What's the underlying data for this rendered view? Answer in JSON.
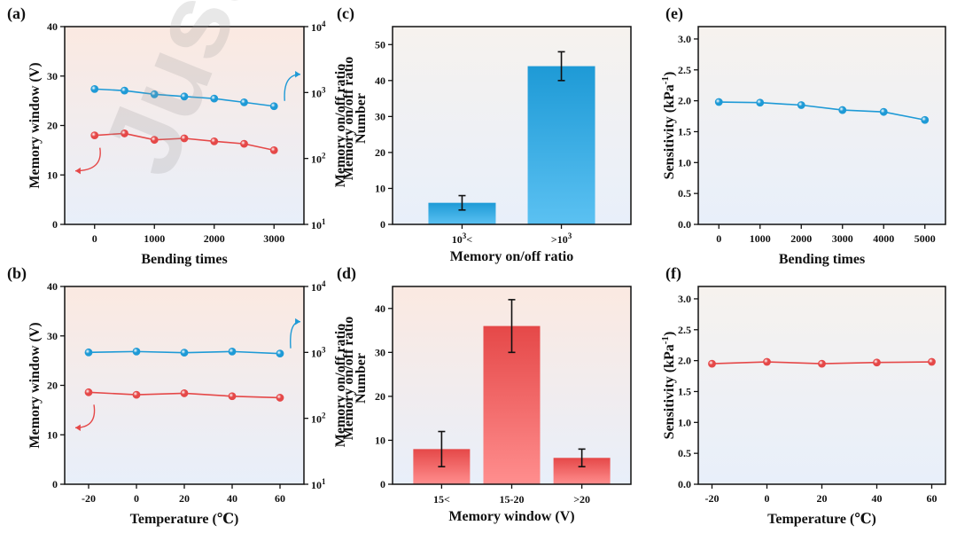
{
  "watermark": "Just",
  "colors": {
    "blue": "#1e9ad6",
    "blue_light": "#5bc1f2",
    "red": "#e54848",
    "red_light": "#ff8e8e",
    "bg_top_red": "#fbe9e1",
    "bg_bottom_blue": "#e8effa",
    "bg_top_blue": "#f6f2ee"
  },
  "chart_data": [
    {
      "id": "a",
      "panel_label": "(a)",
      "type": "line",
      "xlabel": "Bending times",
      "ylabel": "Memory window (V)",
      "y2label": "Memory on/off ratio",
      "x": [
        0,
        500,
        1000,
        1500,
        2000,
        2500,
        3000
      ],
      "xlim": [
        -500,
        3500
      ],
      "xticks": [
        0,
        1000,
        2000,
        3000
      ],
      "ylim": [
        0,
        40
      ],
      "yticks": [
        0,
        10,
        20,
        30,
        40
      ],
      "y2ticks": [
        {
          "base": "10",
          "exp": "1",
          "value": 10
        },
        {
          "base": "10",
          "exp": "2",
          "value": 100
        },
        {
          "base": "10",
          "exp": "3",
          "value": 1000
        },
        {
          "base": "10",
          "exp": "4",
          "value": 10000
        }
      ],
      "series": [
        {
          "name": "Memory window",
          "axis": "left",
          "color": "#e54848",
          "values": [
            18.0,
            18.4,
            17.1,
            17.4,
            16.8,
            16.3,
            15.0
          ]
        },
        {
          "name": "Memory on/off ratio",
          "axis": "right",
          "color": "#1e9ad6",
          "values": [
            1130,
            1070,
            940,
            870,
            810,
            710,
            620
          ]
        }
      ],
      "arrows": [
        {
          "series": "Memory window",
          "direction": "left"
        },
        {
          "series": "Memory on/off ratio",
          "direction": "right"
        }
      ]
    },
    {
      "id": "b",
      "panel_label": "(b)",
      "type": "line",
      "xlabel": "Temperature (℃)",
      "ylabel": "Memory window (V)",
      "y2label": "Memory on/off ratio",
      "x": [
        -20,
        0,
        20,
        40,
        60
      ],
      "xlim": [
        -30,
        70
      ],
      "xticks": [
        -20,
        0,
        20,
        40,
        60
      ],
      "ylim": [
        0,
        40
      ],
      "yticks": [
        0,
        10,
        20,
        30,
        40
      ],
      "y2ticks": [
        {
          "base": "10",
          "exp": "1",
          "value": 10
        },
        {
          "base": "10",
          "exp": "2",
          "value": 100
        },
        {
          "base": "10",
          "exp": "3",
          "value": 1000
        },
        {
          "base": "10",
          "exp": "4",
          "value": 10000
        }
      ],
      "series": [
        {
          "name": "Memory window",
          "axis": "left",
          "color": "#e54848",
          "values": [
            18.6,
            18.1,
            18.4,
            17.8,
            17.5
          ]
        },
        {
          "name": "Memory on/off ratio",
          "axis": "right",
          "color": "#1e9ad6",
          "values": [
            1000,
            1030,
            990,
            1030,
            960
          ]
        }
      ],
      "arrows": [
        {
          "series": "Memory window",
          "direction": "left"
        },
        {
          "series": "Memory on/off ratio",
          "direction": "right"
        }
      ]
    },
    {
      "id": "c",
      "panel_label": "(c)",
      "type": "bar",
      "xlabel": "Memory on/off ratio",
      "ylabel": "Number",
      "categories": [
        {
          "pre": "10",
          "sup": "3",
          "post": "<"
        },
        {
          "pre": ">10",
          "sup": "3",
          "post": ""
        }
      ],
      "values": [
        6,
        44
      ],
      "errors": [
        2,
        4
      ],
      "ylim": [
        0,
        55
      ],
      "yticks": [
        0,
        10,
        20,
        30,
        40,
        50
      ],
      "color": "#1e9ad6"
    },
    {
      "id": "d",
      "panel_label": "(d)",
      "type": "bar",
      "xlabel": "Memory window (V)",
      "ylabel": "Number",
      "categories": [
        {
          "pre": "15<",
          "sup": "",
          "post": ""
        },
        {
          "pre": "15-20",
          "sup": "",
          "post": ""
        },
        {
          "pre": ">20",
          "sup": "",
          "post": ""
        }
      ],
      "values": [
        8,
        36,
        6
      ],
      "errors": [
        4,
        6,
        2
      ],
      "ylim": [
        0,
        45
      ],
      "yticks": [
        0,
        10,
        20,
        30,
        40
      ],
      "color": "#e54848"
    },
    {
      "id": "e",
      "panel_label": "(e)",
      "type": "line",
      "xlabel": "Bending times",
      "ylabel_pre": "Sensitivity (kPa",
      "ylabel_sup": "-1",
      "ylabel_post": ")",
      "x": [
        0,
        1000,
        2000,
        3000,
        4000,
        5000
      ],
      "xlim": [
        -500,
        5500
      ],
      "xticks": [
        0,
        1000,
        2000,
        3000,
        4000,
        5000
      ],
      "ylim": [
        0,
        3.2
      ],
      "yticks": [
        "0.0",
        "0.5",
        "1.0",
        "1.5",
        "2.0",
        "2.5",
        "3.0"
      ],
      "series": [
        {
          "name": "Sensitivity",
          "axis": "left",
          "color": "#1e9ad6",
          "values": [
            1.98,
            1.97,
            1.93,
            1.85,
            1.82,
            1.69
          ]
        }
      ]
    },
    {
      "id": "f",
      "panel_label": "(f)",
      "type": "line",
      "xlabel": "Temperature (℃)",
      "ylabel_pre": "Sensitivity (kPa",
      "ylabel_sup": "-1",
      "ylabel_post": ")",
      "x": [
        -20,
        0,
        20,
        40,
        60
      ],
      "xlim": [
        -25,
        65
      ],
      "xticks": [
        -20,
        0,
        20,
        40,
        60
      ],
      "ylim": [
        0,
        3.2
      ],
      "yticks": [
        "0.0",
        "0.5",
        "1.0",
        "1.5",
        "2.0",
        "2.5",
        "3.0"
      ],
      "series": [
        {
          "name": "Sensitivity",
          "axis": "left",
          "color": "#e54848",
          "values": [
            1.95,
            1.98,
            1.95,
            1.97,
            1.98
          ]
        }
      ]
    }
  ]
}
